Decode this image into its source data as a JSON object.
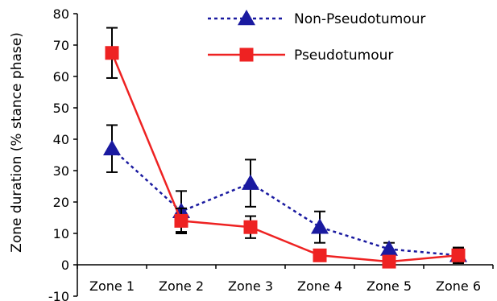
{
  "chart_data": {
    "type": "line",
    "title": "",
    "xlabel": "",
    "ylabel": "Zone duration (% stance phase)",
    "ylim": [
      -10,
      80
    ],
    "yticks": [
      -10,
      0,
      10,
      20,
      30,
      40,
      50,
      60,
      70,
      80
    ],
    "categories": [
      "Zone 1",
      "Zone 2",
      "Zone 3",
      "Zone 4",
      "Zone 5",
      "Zone 6"
    ],
    "grid": false,
    "legend_position": "top-right",
    "series": [
      {
        "name": "Non-Pseudotumour",
        "color": "#1a1aa0",
        "line_style": "dotted",
        "marker": "triangle",
        "values": [
          37,
          17,
          26,
          12,
          5,
          3
        ],
        "error": [
          7.5,
          6.5,
          7.5,
          5,
          2,
          2
        ]
      },
      {
        "name": "Pseudotumour",
        "color": "#ee2222",
        "line_style": "solid",
        "marker": "square",
        "values": [
          67.5,
          14,
          12,
          3,
          1,
          3
        ],
        "error": [
          8,
          4,
          3.5,
          0.5,
          0.5,
          2.5
        ]
      }
    ]
  }
}
